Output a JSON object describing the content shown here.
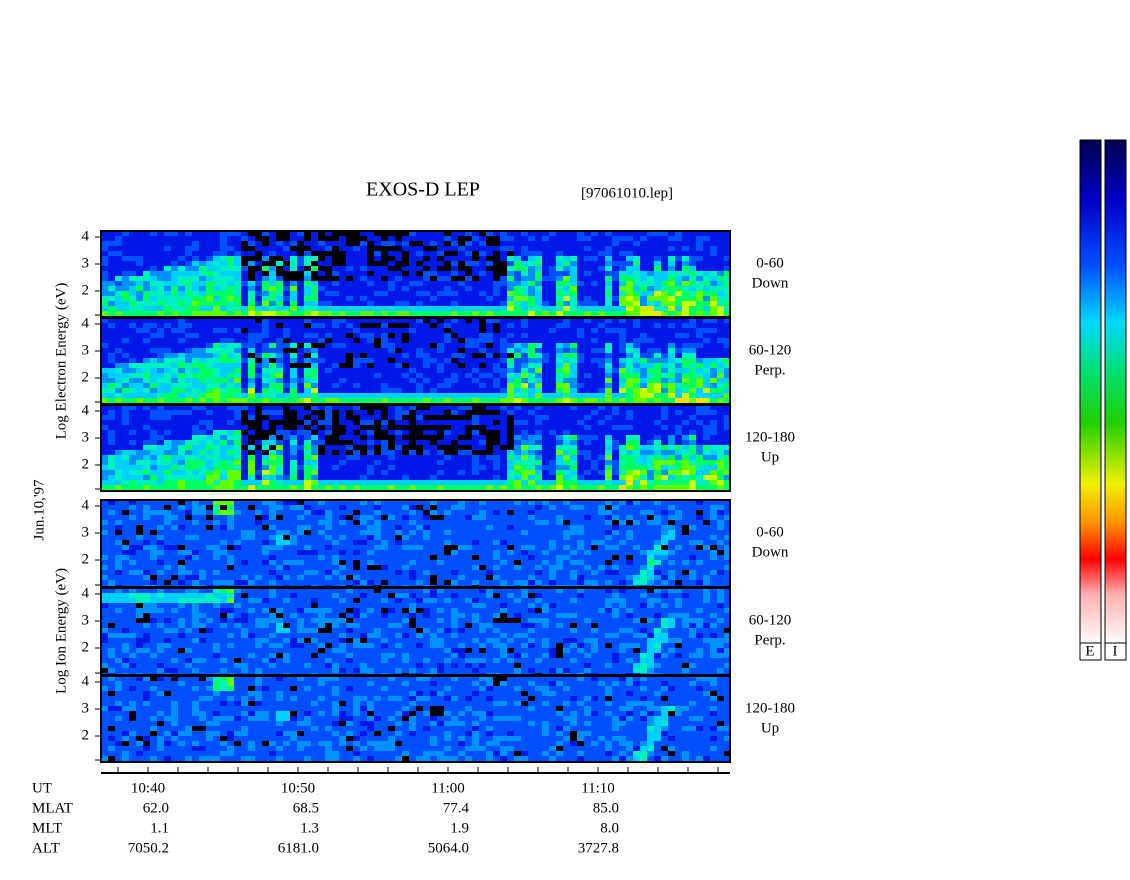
{
  "header": {
    "title": "EXOS-D LEP",
    "file": "[97061010.lep]"
  },
  "date": "Jun.10,'97",
  "electron": {
    "axis_label": "Log Electron Energy (eV)",
    "panels": [
      {
        "angle": "0-60",
        "direction": "Down"
      },
      {
        "angle": "60-120",
        "direction": "Perp."
      },
      {
        "angle": "120-180",
        "direction": "Up"
      }
    ]
  },
  "ion": {
    "axis_label": "Log Ion Energy (eV)",
    "panels": [
      {
        "angle": "0-60",
        "direction": "Down"
      },
      {
        "angle": "60-120",
        "direction": "Perp."
      },
      {
        "angle": "120-180",
        "direction": "Up"
      }
    ]
  },
  "yticks": [
    4,
    3,
    2
  ],
  "time_axis": {
    "label": "UT",
    "ticks": [
      "10:40",
      "10:50",
      "11:00",
      "11:10"
    ]
  },
  "ephemeris": {
    "rows": [
      {
        "label": "MLAT",
        "values": [
          "62.0",
          "68.5",
          "77.4",
          "85.0"
        ]
      },
      {
        "label": "MLT",
        "values": [
          "1.1",
          "1.3",
          "1.9",
          "8.0"
        ]
      },
      {
        "label": "ALT",
        "values": [
          "7050.2",
          "6181.0",
          "5064.0",
          "3727.8"
        ]
      }
    ]
  },
  "colorbar_labels": [
    "E",
    "I"
  ]
}
